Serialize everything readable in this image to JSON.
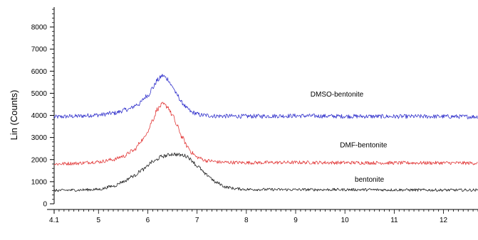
{
  "chart_data": {
    "type": "line",
    "title": "",
    "xlabel": "",
    "ylabel": "Lin (Counts)",
    "xlim": [
      4.1,
      12.7
    ],
    "ylim": [
      0,
      8900
    ],
    "x_ticks": [
      4.1,
      5,
      6,
      7,
      8,
      9,
      10,
      11,
      12
    ],
    "x_tick_labels": [
      "4.1",
      "5",
      "6",
      "7",
      "8",
      "9",
      "10",
      "11",
      "12"
    ],
    "y_ticks": [
      0,
      1000,
      2000,
      3000,
      4000,
      5000,
      6000,
      7000,
      8000
    ],
    "y_tick_labels": [
      "0",
      "1000",
      "2000",
      "3000",
      "4000",
      "5000",
      "6000",
      "7000",
      "8000"
    ],
    "grid": false,
    "legend": "none",
    "series": [
      {
        "name": "DMSO-bentonite",
        "color": "#3333cc",
        "label_at": [
          9.3,
          4850
        ],
        "x": [
          4.1,
          4.5,
          5.0,
          5.3,
          5.6,
          5.8,
          6.0,
          6.1,
          6.2,
          6.3,
          6.4,
          6.5,
          6.6,
          6.7,
          6.8,
          6.9,
          7.1,
          7.4,
          8.0,
          9.0,
          10.0,
          11.0,
          12.0,
          12.7
        ],
        "values": [
          3930,
          3960,
          4020,
          4100,
          4270,
          4500,
          4900,
          5250,
          5600,
          5800,
          5650,
          5300,
          4900,
          4560,
          4300,
          4130,
          4010,
          3970,
          3960,
          3980,
          3960,
          3950,
          3950,
          3940
        ]
      },
      {
        "name": "DMF-bentonite",
        "color": "#e23a3a",
        "label_at": [
          9.9,
          2550
        ],
        "x": [
          4.1,
          4.5,
          5.0,
          5.3,
          5.5,
          5.7,
          5.9,
          6.0,
          6.1,
          6.2,
          6.3,
          6.4,
          6.5,
          6.6,
          6.7,
          6.8,
          6.9,
          7.0,
          7.2,
          7.5,
          8.0,
          9.0,
          10.0,
          11.0,
          12.0,
          12.7
        ],
        "values": [
          1800,
          1830,
          1900,
          2000,
          2150,
          2400,
          2900,
          3300,
          3800,
          4300,
          4500,
          4400,
          4000,
          3500,
          3000,
          2600,
          2300,
          2100,
          1950,
          1880,
          1860,
          1870,
          1860,
          1850,
          1850,
          1840
        ]
      },
      {
        "name": "bentonite",
        "color": "#222222",
        "label_at": [
          10.2,
          1000
        ],
        "x": [
          4.1,
          4.5,
          5.0,
          5.3,
          5.5,
          5.7,
          5.9,
          6.1,
          6.3,
          6.5,
          6.7,
          6.8,
          6.9,
          7.0,
          7.2,
          7.4,
          7.6,
          7.8,
          8.0,
          9.0,
          10.0,
          11.0,
          12.0,
          12.7
        ],
        "values": [
          600,
          620,
          650,
          800,
          1000,
          1250,
          1550,
          1900,
          2150,
          2250,
          2200,
          2150,
          1950,
          1700,
          1300,
          950,
          750,
          680,
          650,
          640,
          640,
          630,
          620,
          620
        ]
      }
    ]
  }
}
